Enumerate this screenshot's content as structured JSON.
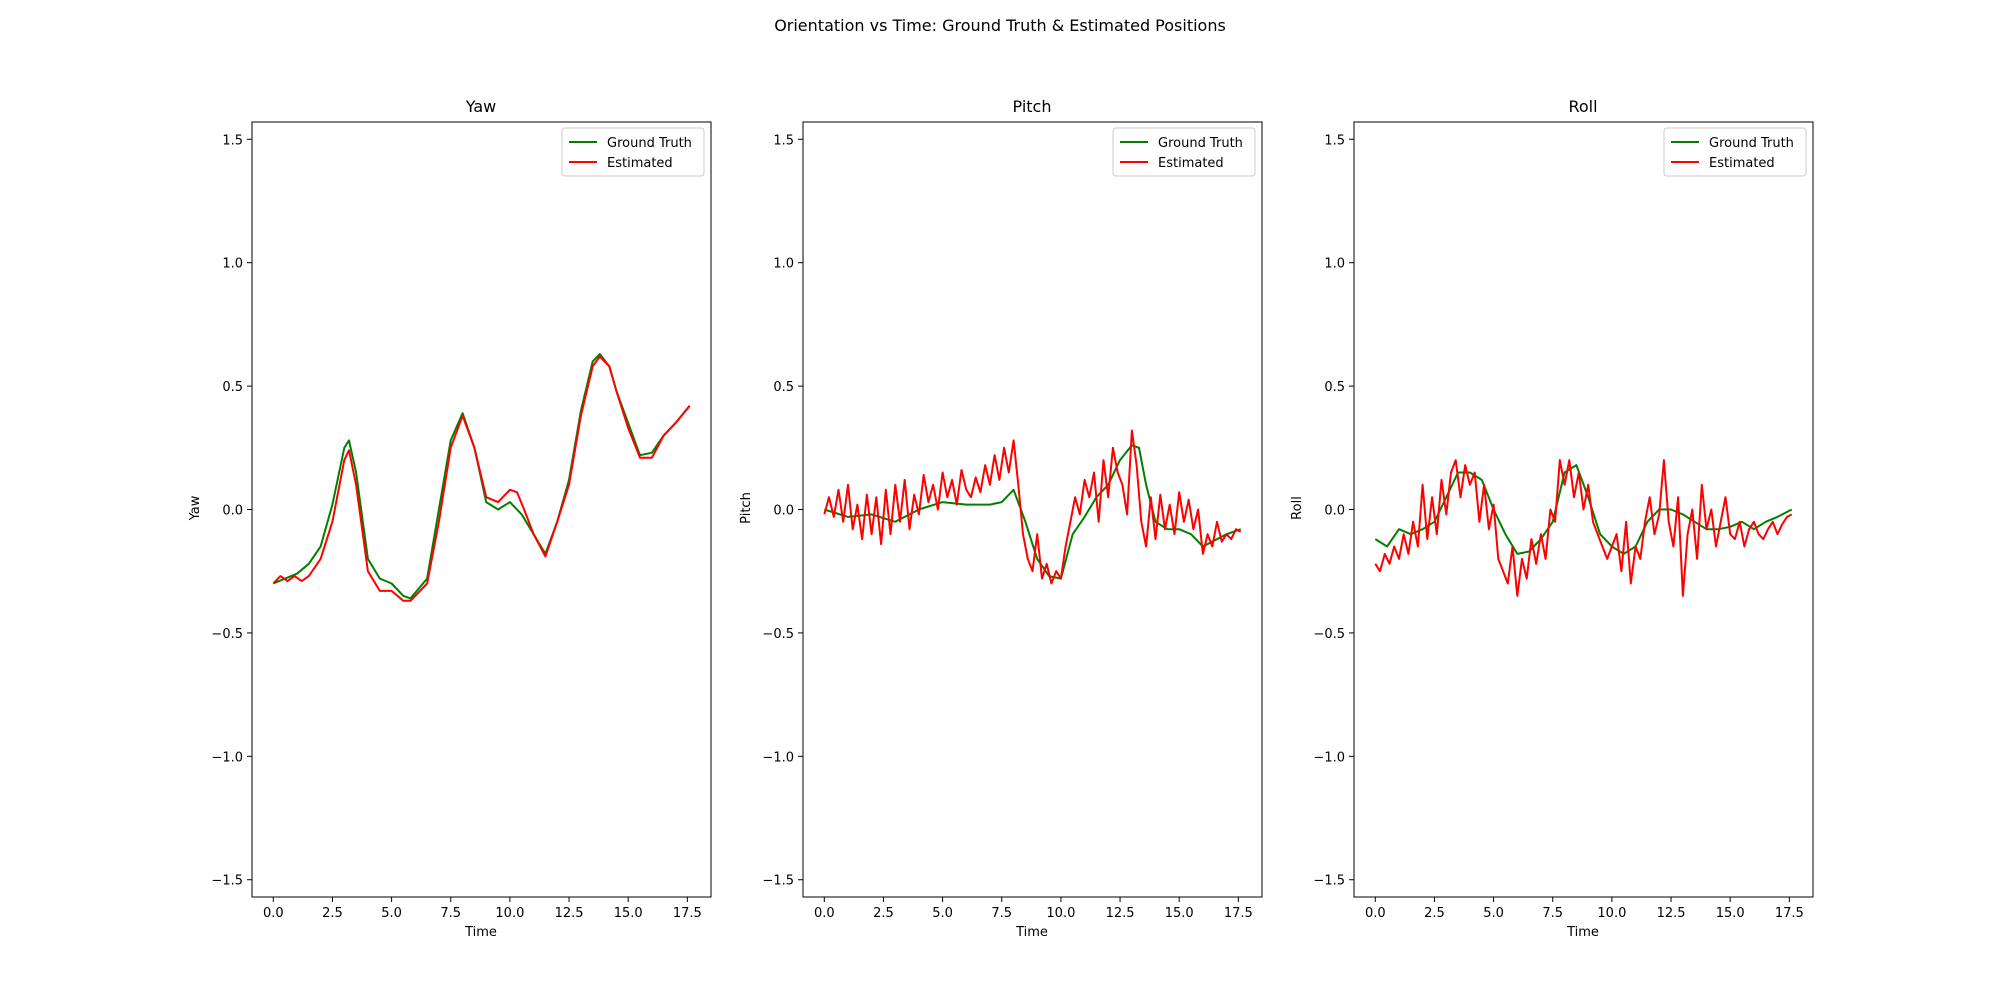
{
  "figure": {
    "suptitle": "Orientation vs Time: Ground Truth & Estimated Positions"
  },
  "colors": {
    "ground_truth": "#008000",
    "estimated": "#ff0000"
  },
  "chart_data": [
    {
      "type": "line",
      "title": "Yaw",
      "xlabel": "Time",
      "ylabel": "Yaw",
      "xlim": [
        -0.9,
        18.5
      ],
      "ylim": [
        -1.57,
        1.57
      ],
      "xticks": [
        "0.0",
        "2.5",
        "5.0",
        "7.5",
        "10.0",
        "12.5",
        "15.0",
        "17.5"
      ],
      "yticks": [
        "−1.5",
        "−1.0",
        "−0.5",
        "0.0",
        "0.5",
        "1.0",
        "1.5"
      ],
      "legend": "top-right",
      "grid": false,
      "series": [
        {
          "name": "Ground Truth",
          "color": "#008000",
          "x": [
            0.0,
            0.5,
            1.0,
            1.5,
            2.0,
            2.5,
            3.0,
            3.2,
            3.5,
            4.0,
            4.5,
            5.0,
            5.5,
            5.8,
            6.5,
            7.0,
            7.5,
            8.0,
            8.5,
            9.0,
            9.5,
            10.0,
            10.5,
            11.0,
            11.5,
            12.0,
            12.5,
            13.0,
            13.5,
            13.8,
            14.2,
            14.5,
            15.0,
            15.5,
            16.0,
            16.5,
            17.0,
            17.6
          ],
          "y": [
            -0.3,
            -0.28,
            -0.26,
            -0.22,
            -0.15,
            0.02,
            0.25,
            0.28,
            0.15,
            -0.2,
            -0.28,
            -0.3,
            -0.35,
            -0.36,
            -0.28,
            0.0,
            0.28,
            0.39,
            0.25,
            0.03,
            0.0,
            0.03,
            -0.02,
            -0.1,
            -0.18,
            -0.05,
            0.12,
            0.4,
            0.6,
            0.63,
            0.58,
            0.48,
            0.35,
            0.22,
            0.23,
            0.3,
            0.35,
            0.42
          ]
        },
        {
          "name": "Estimated",
          "color": "#ff0000",
          "x": [
            0.0,
            0.3,
            0.6,
            0.9,
            1.2,
            1.5,
            2.0,
            2.5,
            3.0,
            3.2,
            3.5,
            4.0,
            4.5,
            5.0,
            5.5,
            5.8,
            6.5,
            7.0,
            7.5,
            8.0,
            8.5,
            9.0,
            9.5,
            10.0,
            10.3,
            10.6,
            11.0,
            11.5,
            12.0,
            12.5,
            13.0,
            13.5,
            13.8,
            14.2,
            14.5,
            15.0,
            15.5,
            16.0,
            16.5,
            17.0,
            17.6
          ],
          "y": [
            -0.3,
            -0.27,
            -0.29,
            -0.27,
            -0.29,
            -0.27,
            -0.2,
            -0.05,
            0.2,
            0.24,
            0.1,
            -0.25,
            -0.33,
            -0.33,
            -0.37,
            -0.37,
            -0.3,
            -0.05,
            0.25,
            0.38,
            0.25,
            0.05,
            0.03,
            0.08,
            0.07,
            0.0,
            -0.1,
            -0.19,
            -0.05,
            0.1,
            0.38,
            0.58,
            0.62,
            0.58,
            0.48,
            0.33,
            0.21,
            0.21,
            0.3,
            0.35,
            0.42
          ]
        }
      ]
    },
    {
      "type": "line",
      "title": "Pitch",
      "xlabel": "Time",
      "ylabel": "Pitch",
      "xlim": [
        -0.9,
        18.5
      ],
      "ylim": [
        -1.57,
        1.57
      ],
      "xticks": [
        "0.0",
        "2.5",
        "5.0",
        "7.5",
        "10.0",
        "12.5",
        "15.0",
        "17.5"
      ],
      "yticks": [
        "−1.5",
        "−1.0",
        "−0.5",
        "0.0",
        "0.5",
        "1.0",
        "1.5"
      ],
      "legend": "top-right",
      "grid": false,
      "series": [
        {
          "name": "Ground Truth",
          "color": "#008000",
          "x": [
            0.0,
            1.0,
            2.0,
            3.0,
            4.0,
            5.0,
            6.0,
            7.0,
            7.5,
            8.0,
            8.5,
            9.0,
            9.5,
            10.0,
            10.5,
            11.0,
            11.5,
            12.0,
            12.5,
            13.0,
            13.3,
            13.6,
            14.0,
            14.5,
            15.0,
            15.5,
            16.0,
            17.0,
            17.6
          ],
          "y": [
            0.0,
            -0.03,
            -0.02,
            -0.05,
            0.0,
            0.03,
            0.02,
            0.02,
            0.03,
            0.08,
            -0.05,
            -0.2,
            -0.27,
            -0.28,
            -0.1,
            -0.03,
            0.05,
            0.1,
            0.2,
            0.26,
            0.25,
            0.1,
            -0.05,
            -0.08,
            -0.08,
            -0.1,
            -0.15,
            -0.1,
            -0.08
          ]
        },
        {
          "name": "Estimated",
          "color": "#ff0000",
          "x": [
            0.0,
            0.2,
            0.4,
            0.6,
            0.8,
            1.0,
            1.2,
            1.4,
            1.6,
            1.8,
            2.0,
            2.2,
            2.4,
            2.6,
            2.8,
            3.0,
            3.2,
            3.4,
            3.6,
            3.8,
            4.0,
            4.2,
            4.4,
            4.6,
            4.8,
            5.0,
            5.2,
            5.4,
            5.6,
            5.8,
            6.0,
            6.2,
            6.4,
            6.6,
            6.8,
            7.0,
            7.2,
            7.4,
            7.6,
            7.8,
            8.0,
            8.2,
            8.4,
            8.6,
            8.8,
            9.0,
            9.2,
            9.4,
            9.6,
            9.8,
            10.0,
            10.2,
            10.4,
            10.6,
            10.8,
            11.0,
            11.2,
            11.4,
            11.6,
            11.8,
            12.0,
            12.2,
            12.4,
            12.6,
            12.8,
            13.0,
            13.2,
            13.4,
            13.6,
            13.8,
            14.0,
            14.2,
            14.4,
            14.6,
            14.8,
            15.0,
            15.2,
            15.4,
            15.6,
            15.8,
            16.0,
            16.2,
            16.4,
            16.6,
            16.8,
            17.0,
            17.2,
            17.4,
            17.6
          ],
          "y": [
            -0.02,
            0.05,
            -0.03,
            0.08,
            -0.05,
            0.1,
            -0.08,
            0.02,
            -0.12,
            0.06,
            -0.1,
            0.05,
            -0.14,
            0.08,
            -0.1,
            0.1,
            -0.05,
            0.12,
            -0.08,
            0.06,
            -0.02,
            0.14,
            0.03,
            0.1,
            0.0,
            0.15,
            0.05,
            0.12,
            0.02,
            0.16,
            0.08,
            0.05,
            0.13,
            0.07,
            0.18,
            0.1,
            0.22,
            0.12,
            0.25,
            0.15,
            0.28,
            0.1,
            -0.1,
            -0.2,
            -0.25,
            -0.1,
            -0.28,
            -0.22,
            -0.3,
            -0.25,
            -0.28,
            -0.15,
            -0.05,
            0.05,
            -0.02,
            0.12,
            0.05,
            0.15,
            -0.05,
            0.2,
            0.05,
            0.25,
            0.15,
            0.1,
            -0.02,
            0.32,
            0.18,
            -0.05,
            -0.15,
            0.05,
            -0.12,
            0.06,
            -0.08,
            0.02,
            -0.1,
            0.07,
            -0.05,
            0.04,
            -0.08,
            0.0,
            -0.18,
            -0.1,
            -0.15,
            -0.05,
            -0.13,
            -0.1,
            -0.12,
            -0.08,
            -0.09
          ]
        }
      ]
    },
    {
      "type": "line",
      "title": "Roll",
      "xlabel": "Time",
      "ylabel": "Roll",
      "xlim": [
        -0.9,
        18.5
      ],
      "ylim": [
        -1.57,
        1.57
      ],
      "xticks": [
        "0.0",
        "2.5",
        "5.0",
        "7.5",
        "10.0",
        "12.5",
        "15.0",
        "17.5"
      ],
      "yticks": [
        "−1.5",
        "−1.0",
        "−0.5",
        "0.0",
        "0.5",
        "1.0",
        "1.5"
      ],
      "legend": "top-right",
      "grid": false,
      "series": [
        {
          "name": "Ground Truth",
          "color": "#008000",
          "x": [
            0.0,
            0.5,
            1.0,
            1.5,
            2.0,
            2.5,
            3.0,
            3.5,
            4.0,
            4.5,
            5.0,
            5.5,
            6.0,
            6.5,
            7.0,
            7.5,
            8.0,
            8.5,
            9.0,
            9.5,
            10.0,
            10.5,
            11.0,
            11.5,
            12.0,
            12.5,
            13.0,
            13.5,
            14.0,
            14.5,
            15.0,
            15.5,
            16.0,
            16.5,
            17.0,
            17.6
          ],
          "y": [
            -0.12,
            -0.15,
            -0.08,
            -0.1,
            -0.08,
            -0.05,
            0.05,
            0.15,
            0.15,
            0.12,
            0.0,
            -0.1,
            -0.18,
            -0.17,
            -0.12,
            -0.05,
            0.15,
            0.18,
            0.05,
            -0.1,
            -0.15,
            -0.18,
            -0.15,
            -0.05,
            0.0,
            0.0,
            -0.02,
            -0.05,
            -0.08,
            -0.08,
            -0.07,
            -0.05,
            -0.08,
            -0.05,
            -0.03,
            0.0
          ]
        },
        {
          "name": "Estimated",
          "color": "#ff0000",
          "x": [
            0.0,
            0.2,
            0.4,
            0.6,
            0.8,
            1.0,
            1.2,
            1.4,
            1.6,
            1.8,
            2.0,
            2.2,
            2.4,
            2.6,
            2.8,
            3.0,
            3.2,
            3.4,
            3.6,
            3.8,
            4.0,
            4.2,
            4.4,
            4.6,
            4.8,
            5.0,
            5.2,
            5.4,
            5.6,
            5.8,
            6.0,
            6.2,
            6.4,
            6.6,
            6.8,
            7.0,
            7.2,
            7.4,
            7.6,
            7.8,
            8.0,
            8.2,
            8.4,
            8.6,
            8.8,
            9.0,
            9.2,
            9.4,
            9.6,
            9.8,
            10.0,
            10.2,
            10.4,
            10.6,
            10.8,
            11.0,
            11.2,
            11.4,
            11.6,
            11.8,
            12.0,
            12.2,
            12.4,
            12.6,
            12.8,
            13.0,
            13.2,
            13.4,
            13.6,
            13.8,
            14.0,
            14.2,
            14.4,
            14.6,
            14.8,
            15.0,
            15.2,
            15.4,
            15.6,
            15.8,
            16.0,
            16.2,
            16.4,
            16.6,
            16.8,
            17.0,
            17.2,
            17.4,
            17.6
          ],
          "y": [
            -0.22,
            -0.25,
            -0.18,
            -0.22,
            -0.15,
            -0.2,
            -0.1,
            -0.18,
            -0.05,
            -0.15,
            0.1,
            -0.12,
            0.05,
            -0.1,
            0.12,
            -0.02,
            0.15,
            0.2,
            0.05,
            0.18,
            0.1,
            0.15,
            -0.05,
            0.1,
            -0.08,
            0.02,
            -0.2,
            -0.25,
            -0.3,
            -0.15,
            -0.35,
            -0.2,
            -0.28,
            -0.12,
            -0.22,
            -0.1,
            -0.2,
            0.0,
            -0.05,
            0.2,
            0.1,
            0.2,
            0.05,
            0.15,
            0.0,
            0.1,
            -0.05,
            -0.1,
            -0.15,
            -0.2,
            -0.15,
            -0.1,
            -0.25,
            -0.05,
            -0.3,
            -0.15,
            -0.2,
            -0.05,
            0.05,
            -0.1,
            -0.02,
            0.2,
            -0.05,
            -0.15,
            0.05,
            -0.35,
            -0.1,
            0.0,
            -0.2,
            0.1,
            -0.08,
            0.0,
            -0.15,
            -0.05,
            0.05,
            -0.1,
            -0.12,
            -0.05,
            -0.15,
            -0.08,
            -0.05,
            -0.1,
            -0.12,
            -0.08,
            -0.05,
            -0.1,
            -0.06,
            -0.03,
            -0.02
          ]
        }
      ]
    }
  ]
}
